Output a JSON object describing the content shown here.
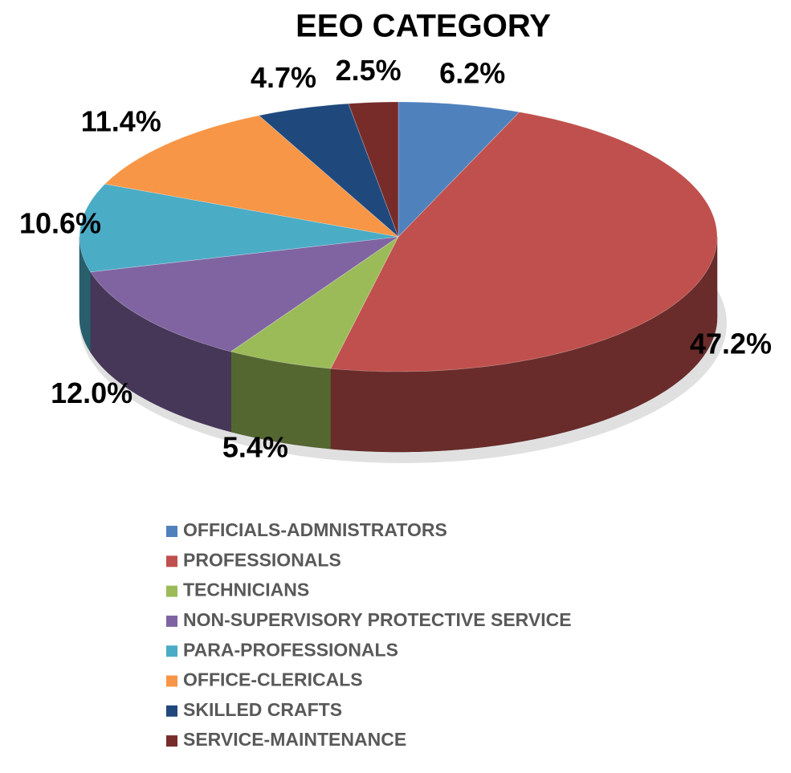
{
  "chart_data": {
    "type": "pie3d",
    "title": "EEO CATEGORY",
    "categories": [
      "OFFICIALS-ADMNISTRATORS",
      "PROFESSIONALS",
      "TECHNICIANS",
      "NON-SUPERVISORY PROTECTIVE SERVICE",
      "PARA-PROFESSIONALS",
      "OFFICE-CLERICALS",
      "SKILLED CRAFTS",
      "SERVICE-MAINTENANCE"
    ],
    "values": [
      6.2,
      47.2,
      5.4,
      12.0,
      10.6,
      11.4,
      4.7,
      2.5
    ],
    "value_labels": [
      "6.2%",
      "47.2%",
      "5.4%",
      "12.0%",
      "10.6%",
      "11.4%",
      "4.7%",
      "2.5%"
    ],
    "colors": [
      "#4f81bd",
      "#c0504d",
      "#9bbb59",
      "#8064a2",
      "#4bacc6",
      "#f79646",
      "#1f497d",
      "#772c2a"
    ],
    "legend": "bottom"
  }
}
